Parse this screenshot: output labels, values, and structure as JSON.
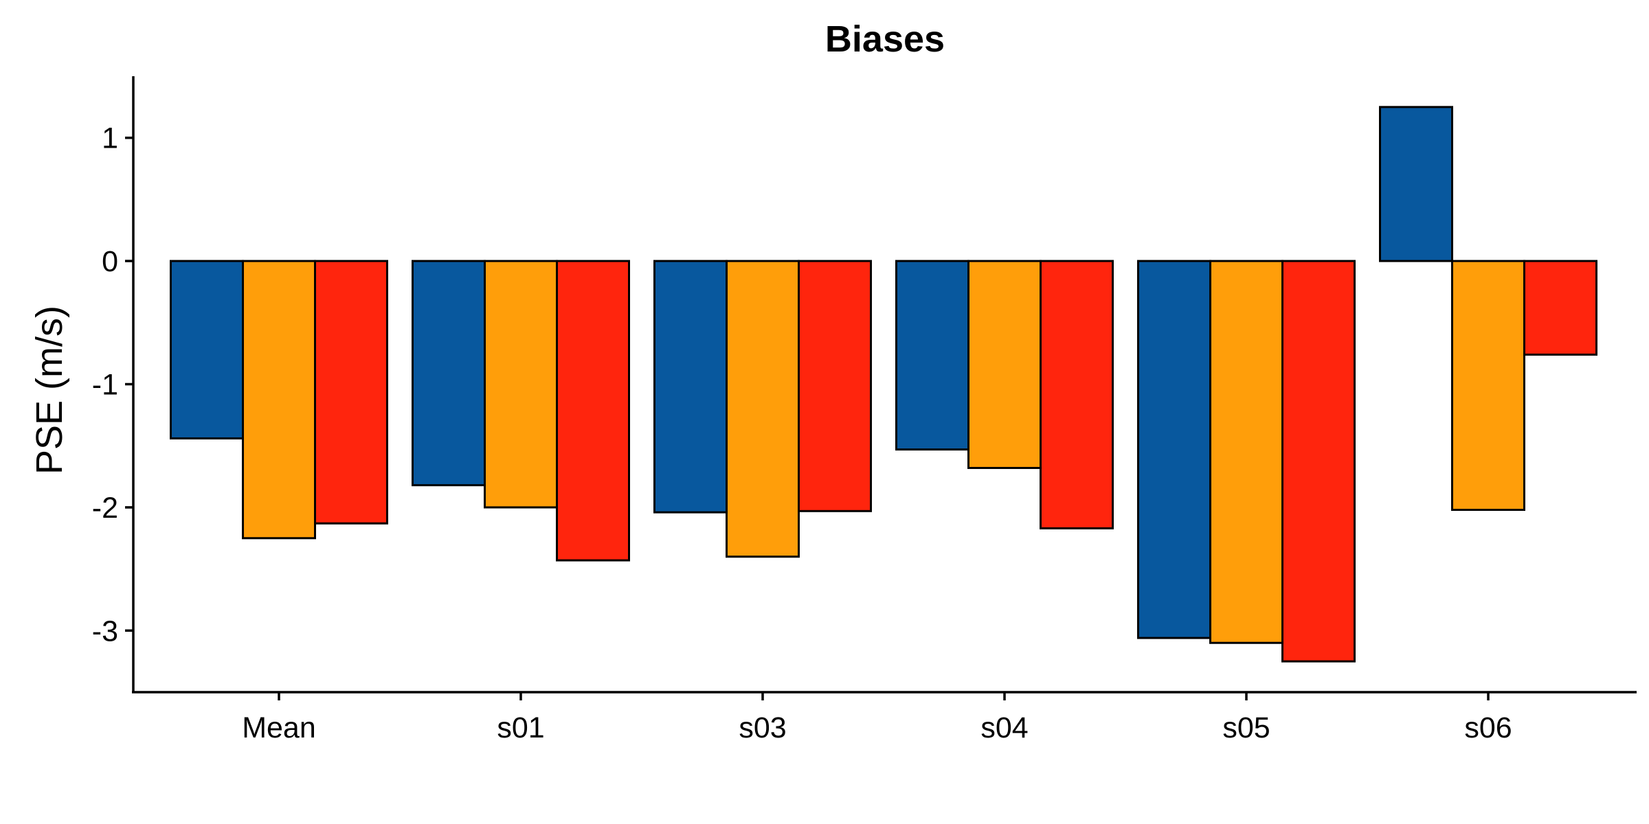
{
  "chart_data": {
    "type": "bar",
    "title": "Biases",
    "xlabel": "",
    "ylabel": "PSE (m/s)",
    "categories": [
      "Mean",
      "s01",
      "s03",
      "s04",
      "s05",
      "s06"
    ],
    "series": [
      {
        "color": "#08589e",
        "values": [
          -1.44,
          -1.82,
          -2.04,
          -1.53,
          -3.06,
          1.25
        ]
      },
      {
        "color": "#ff9e0a",
        "values": [
          -2.25,
          -2.0,
          -2.4,
          -1.68,
          -3.1,
          -2.02
        ]
      },
      {
        "color": "#ff250d",
        "values": [
          -2.13,
          -2.43,
          -2.03,
          -2.17,
          -3.25,
          -0.76
        ]
      }
    ],
    "ylim": [
      -3.5,
      1.5
    ],
    "yticks": [
      1,
      0,
      -1,
      -2,
      -3
    ],
    "grid": false,
    "legend": "none"
  }
}
